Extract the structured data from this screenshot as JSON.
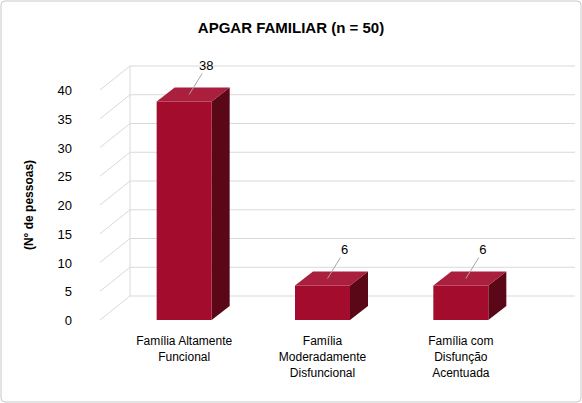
{
  "chart_data": {
    "type": "bar",
    "title": "APGAR FAMILIAR (n = 50)",
    "y_label": "(N° de pessoas)",
    "categories": [
      "Família Altamente Funcional",
      "Família Moderadamente Disfuncional",
      "Família com Disfunção Acentuada"
    ],
    "values": [
      38,
      6,
      6
    ],
    "color": "#a30c2c",
    "ylim": [
      0,
      40
    ],
    "yticks": [
      0,
      5,
      10,
      15,
      20,
      25,
      30,
      35,
      40
    ],
    "grid": true,
    "data_labels": true
  }
}
